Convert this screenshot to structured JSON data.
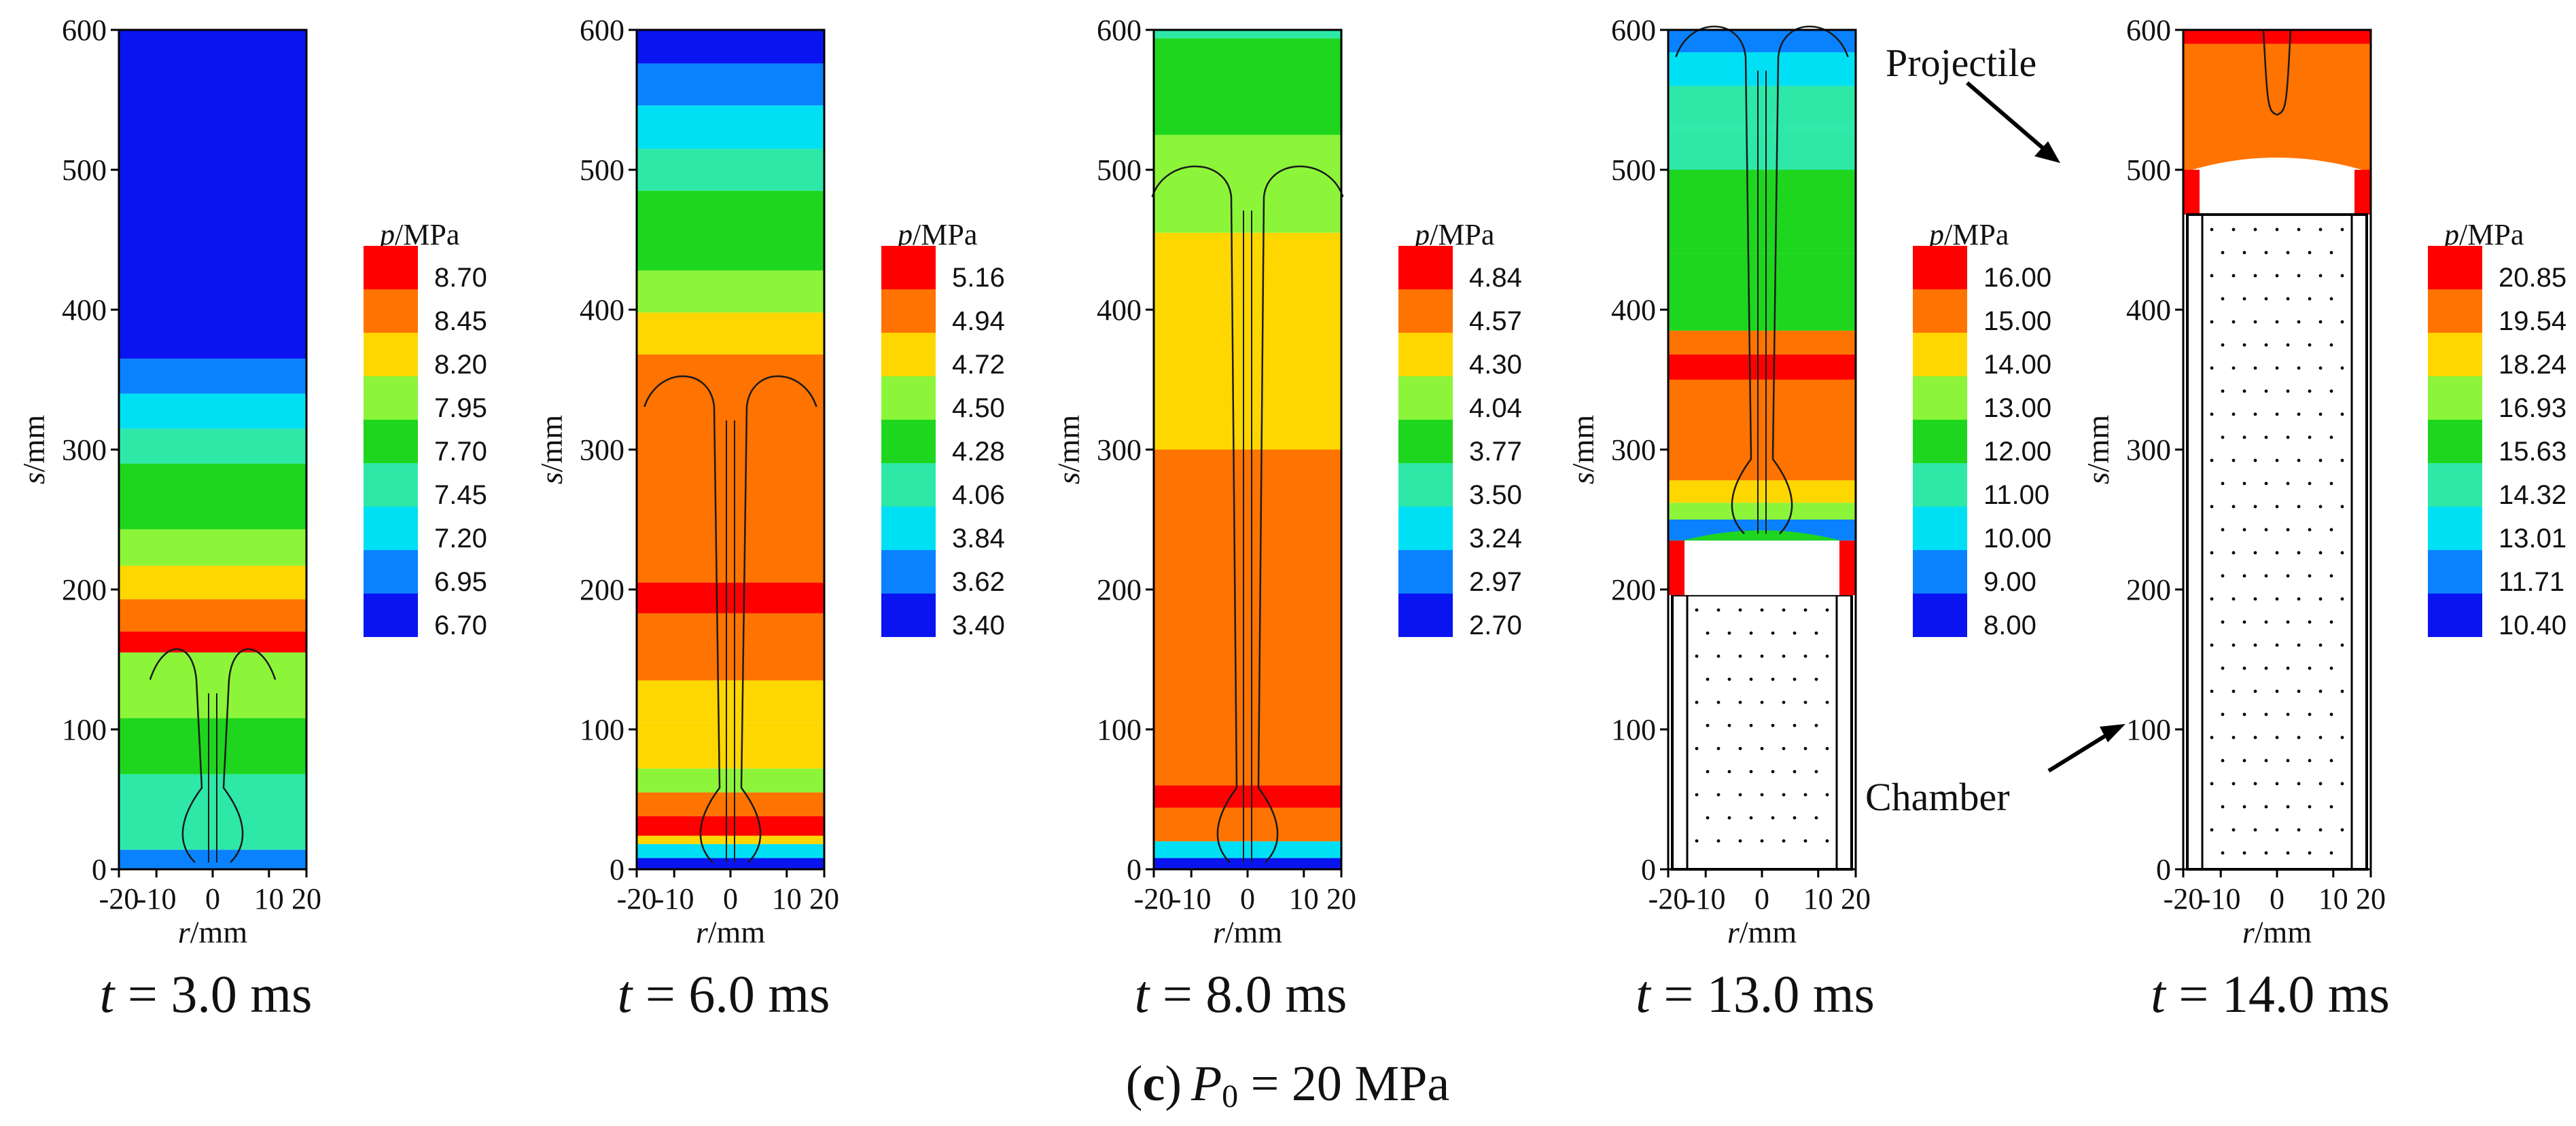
{
  "figure": {
    "caption_part": "c",
    "caption_open": "(",
    "caption_close": ")",
    "caption_var": "P",
    "caption_sub": "0",
    "caption_eq": " = 20 MPa"
  },
  "annotations": {
    "projectile": "Projectile",
    "chamber": "Chamber"
  },
  "colors": {
    "contour_line": "#1a1a1a",
    "cartridge_fill": "#ffffff",
    "cartridge_stroke": "#000000"
  },
  "chart_data": [
    {
      "type": "heatmap",
      "time_var": "t",
      "time_text": " = 3.0 ms",
      "xlabel_var": "r",
      "xlabel_unit": "/mm",
      "ylabel_var": "s",
      "ylabel_unit": "/mm",
      "xlim": [
        -20,
        20
      ],
      "ylim": [
        0,
        600
      ],
      "x_ticks": [
        "-20",
        "-10",
        "0",
        "10",
        "20"
      ],
      "y_ticks": [
        "0",
        "100",
        "200",
        "300",
        "400",
        "500",
        "600"
      ],
      "legend_var": "p",
      "legend_unit": "/MPa",
      "legend_levels": [
        "8.70",
        "8.45",
        "8.20",
        "7.95",
        "7.70",
        "7.45",
        "7.20",
        "6.95",
        "6.70"
      ],
      "level_colors": [
        "#ff0000",
        "#ff7300",
        "#ffd700",
        "#8cf53a",
        "#1ed61e",
        "#2ee8a8",
        "#00e0f5",
        "#0a82ff",
        "#0a14f0"
      ],
      "field_bands": [
        {
          "s_range": [
            0,
            14
          ],
          "color": "#0a82ff"
        },
        {
          "s_range": [
            14,
            68
          ],
          "color": "#2ee8a8"
        },
        {
          "s_range": [
            68,
            108
          ],
          "color": "#1ed61e"
        },
        {
          "s_range": [
            108,
            155
          ],
          "color": "#8cf53a"
        },
        {
          "s_range": [
            155,
            170
          ],
          "color": "#ff0000"
        },
        {
          "s_range": [
            170,
            193
          ],
          "color": "#ff7300"
        },
        {
          "s_range": [
            193,
            217
          ],
          "color": "#ffd700"
        },
        {
          "s_range": [
            217,
            243
          ],
          "color": "#8cf53a"
        },
        {
          "s_range": [
            243,
            290
          ],
          "color": "#1ed61e"
        },
        {
          "s_range": [
            290,
            315
          ],
          "color": "#2ee8a8"
        },
        {
          "s_range": [
            315,
            340
          ],
          "color": "#00e0f5"
        },
        {
          "s_range": [
            340,
            365
          ],
          "color": "#0a82ff"
        },
        {
          "s_range": [
            365,
            600
          ],
          "color": "#0a14f0"
        }
      ],
      "contour_top_s": 155,
      "contour_half_width_mm": 9,
      "chamber_top_s": null,
      "projectile_base_s": null
    },
    {
      "type": "heatmap",
      "time_var": "t",
      "time_text": " = 6.0 ms",
      "xlabel_var": "r",
      "xlabel_unit": "/mm",
      "ylabel_var": "s",
      "ylabel_unit": "/mm",
      "xlim": [
        -20,
        20
      ],
      "ylim": [
        0,
        600
      ],
      "x_ticks": [
        "-20",
        "-10",
        "0",
        "10",
        "20"
      ],
      "y_ticks": [
        "0",
        "100",
        "200",
        "300",
        "400",
        "500",
        "600"
      ],
      "legend_var": "p",
      "legend_unit": "/MPa",
      "legend_levels": [
        "5.16",
        "4.94",
        "4.72",
        "4.50",
        "4.28",
        "4.06",
        "3.84",
        "3.62",
        "3.40"
      ],
      "level_colors": [
        "#ff0000",
        "#ff7300",
        "#ffd700",
        "#8cf53a",
        "#1ed61e",
        "#2ee8a8",
        "#00e0f5",
        "#0a82ff",
        "#0a14f0"
      ],
      "field_bands": [
        {
          "s_range": [
            0,
            8
          ],
          "color": "#0a14f0"
        },
        {
          "s_range": [
            8,
            18
          ],
          "color": "#00e0f5"
        },
        {
          "s_range": [
            18,
            24
          ],
          "color": "#ffd700"
        },
        {
          "s_range": [
            24,
            38
          ],
          "color": "#ff0000"
        },
        {
          "s_range": [
            38,
            55
          ],
          "color": "#ff7300"
        },
        {
          "s_range": [
            55,
            72
          ],
          "color": "#8cf53a"
        },
        {
          "s_range": [
            72,
            105
          ],
          "color": "#ffd700"
        },
        {
          "s_range": [
            105,
            135
          ],
          "color": "#ffd700"
        },
        {
          "s_range": [
            135,
            183
          ],
          "color": "#ff7300"
        },
        {
          "s_range": [
            183,
            205
          ],
          "color": "#ff0000"
        },
        {
          "s_range": [
            205,
            368
          ],
          "color": "#ff7300"
        },
        {
          "s_range": [
            368,
            398
          ],
          "color": "#ffd700"
        },
        {
          "s_range": [
            398,
            428
          ],
          "color": "#8cf53a"
        },
        {
          "s_range": [
            428,
            485
          ],
          "color": "#1ed61e"
        },
        {
          "s_range": [
            485,
            515
          ],
          "color": "#2ee8a8"
        },
        {
          "s_range": [
            515,
            546
          ],
          "color": "#00e0f5"
        },
        {
          "s_range": [
            546,
            576
          ],
          "color": "#0a82ff"
        },
        {
          "s_range": [
            576,
            600
          ],
          "color": "#0a14f0"
        }
      ],
      "contour_top_s": 350,
      "contour_half_width_mm": 14,
      "chamber_top_s": null,
      "projectile_base_s": null
    },
    {
      "type": "heatmap",
      "time_var": "t",
      "time_text": " = 8.0 ms",
      "xlabel_var": "r",
      "xlabel_unit": "/mm",
      "ylabel_var": "s",
      "ylabel_unit": "/mm",
      "xlim": [
        -20,
        20
      ],
      "ylim": [
        0,
        600
      ],
      "x_ticks": [
        "-20",
        "-10",
        "0",
        "10",
        "20"
      ],
      "y_ticks": [
        "0",
        "100",
        "200",
        "300",
        "400",
        "500",
        "600"
      ],
      "legend_var": "p",
      "legend_unit": "/MPa",
      "legend_levels": [
        "4.84",
        "4.57",
        "4.30",
        "4.04",
        "3.77",
        "3.50",
        "3.24",
        "2.97",
        "2.70"
      ],
      "level_colors": [
        "#ff0000",
        "#ff7300",
        "#ffd700",
        "#8cf53a",
        "#1ed61e",
        "#2ee8a8",
        "#00e0f5",
        "#0a82ff",
        "#0a14f0"
      ],
      "field_bands": [
        {
          "s_range": [
            0,
            8
          ],
          "color": "#0a14f0"
        },
        {
          "s_range": [
            8,
            20
          ],
          "color": "#00e0f5"
        },
        {
          "s_range": [
            20,
            44
          ],
          "color": "#ff7300"
        },
        {
          "s_range": [
            44,
            60
          ],
          "color": "#ff0000"
        },
        {
          "s_range": [
            60,
            300
          ],
          "color": "#ff7300"
        },
        {
          "s_range": [
            300,
            455
          ],
          "color": "#ffd700"
        },
        {
          "s_range": [
            455,
            525
          ],
          "color": "#8cf53a"
        },
        {
          "s_range": [
            525,
            594
          ],
          "color": "#1ed61e"
        },
        {
          "s_range": [
            594,
            600
          ],
          "color": "#2ee8a8"
        }
      ],
      "contour_top_s": 500,
      "contour_half_width_mm": 16,
      "chamber_top_s": null,
      "projectile_base_s": null
    },
    {
      "type": "heatmap",
      "time_var": "t",
      "time_text": " = 13.0 ms",
      "xlabel_var": "r",
      "xlabel_unit": "/mm",
      "ylabel_var": "s",
      "ylabel_unit": "/mm",
      "xlim": [
        -20,
        20
      ],
      "ylim": [
        0,
        600
      ],
      "x_ticks": [
        "-20",
        "-10",
        "0",
        "10",
        "20"
      ],
      "y_ticks": [
        "0",
        "100",
        "200",
        "300",
        "400",
        "500",
        "600"
      ],
      "legend_var": "p",
      "legend_unit": "/MPa",
      "legend_levels": [
        "16.00",
        "15.00",
        "14.00",
        "13.00",
        "12.00",
        "11.00",
        "10.00",
        "9.00",
        "8.00"
      ],
      "level_colors": [
        "#ff0000",
        "#ff7300",
        "#ffd700",
        "#8cf53a",
        "#1ed61e",
        "#2ee8a8",
        "#00e0f5",
        "#0a82ff",
        "#0a14f0"
      ],
      "field_bands": [
        {
          "s_range": [
            235,
            250
          ],
          "color": "#0a82ff"
        },
        {
          "s_range": [
            250,
            262
          ],
          "color": "#8cf53a"
        },
        {
          "s_range": [
            262,
            278
          ],
          "color": "#ffd700"
        },
        {
          "s_range": [
            278,
            350
          ],
          "color": "#ff7300"
        },
        {
          "s_range": [
            350,
            368
          ],
          "color": "#ff0000"
        },
        {
          "s_range": [
            368,
            385
          ],
          "color": "#ff7300"
        },
        {
          "s_range": [
            385,
            440
          ],
          "color": "#1ed61e"
        },
        {
          "s_range": [
            440,
            500
          ],
          "color": "#1ed61e"
        },
        {
          "s_range": [
            500,
            530
          ],
          "color": "#2ee8a8"
        },
        {
          "s_range": [
            530,
            560
          ],
          "color": "#2ee8a8"
        },
        {
          "s_range": [
            560,
            584
          ],
          "color": "#00e0f5"
        },
        {
          "s_range": [
            584,
            600
          ],
          "color": "#0a82ff"
        }
      ],
      "contour_top_s": 600,
      "contour_half_width_mm": 14,
      "chamber_top_s": 196,
      "projectile_base_s": null
    },
    {
      "type": "heatmap",
      "time_var": "t",
      "time_text": " = 14.0 ms",
      "xlabel_var": "r",
      "xlabel_unit": "/mm",
      "ylabel_var": "s",
      "ylabel_unit": "/mm",
      "xlim": [
        -20,
        20
      ],
      "ylim": [
        0,
        600
      ],
      "x_ticks": [
        "-20",
        "-10",
        "0",
        "10",
        "20"
      ],
      "y_ticks": [
        "0",
        "100",
        "200",
        "300",
        "400",
        "500",
        "600"
      ],
      "legend_var": "p",
      "legend_unit": "/MPa",
      "legend_levels": [
        "20.85",
        "19.54",
        "18.24",
        "16.93",
        "15.63",
        "14.32",
        "13.01",
        "11.71",
        "10.40"
      ],
      "level_colors": [
        "#ff0000",
        "#ff7300",
        "#ffd700",
        "#8cf53a",
        "#1ed61e",
        "#2ee8a8",
        "#00e0f5",
        "#0a82ff",
        "#0a14f0"
      ],
      "field_bands": [
        {
          "s_range": [
            500,
            590
          ],
          "color": "#ff7300"
        },
        {
          "s_range": [
            590,
            600
          ],
          "color": "#ff0000"
        }
      ],
      "contour_top_s": null,
      "contour_half_width_mm": null,
      "chamber_top_s": 468,
      "projectile_base_s": 500
    }
  ]
}
